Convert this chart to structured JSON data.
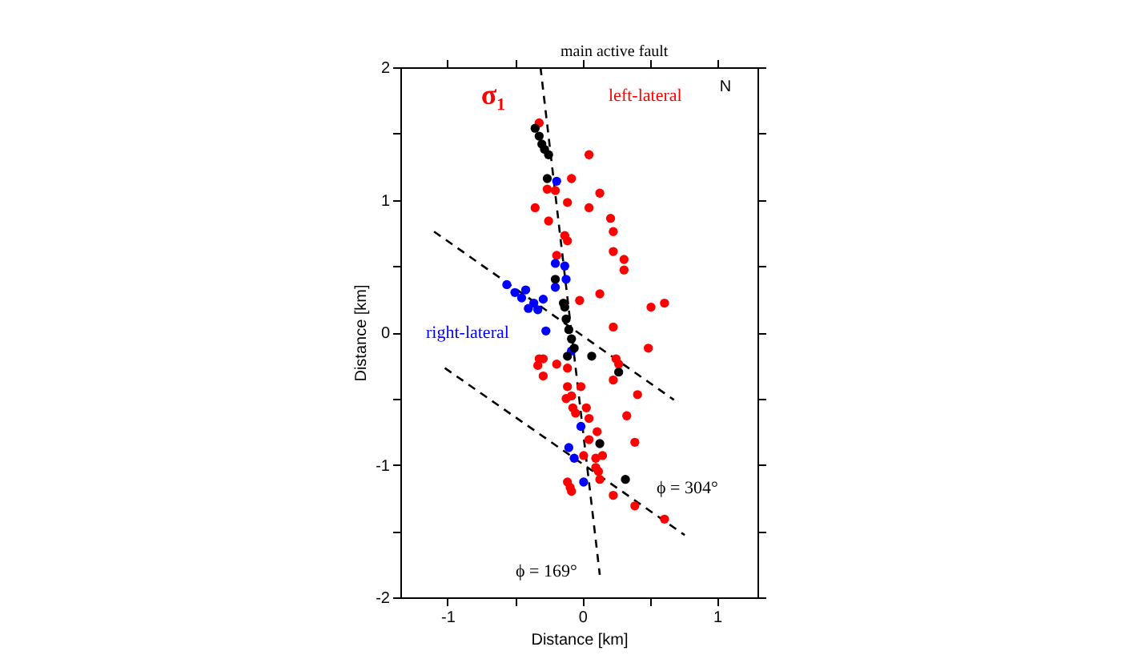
{
  "chart_data": {
    "type": "scatter",
    "xlabel": "Distance [km]",
    "ylabel": "Distance [km]",
    "xlim": [
      -1.35,
      1.3
    ],
    "ylim": [
      -2,
      2
    ],
    "xticks": [
      -1,
      {
        "value": -0.5,
        "label": null
      },
      0,
      {
        "value": 0.5,
        "label": null
      },
      1
    ],
    "yticks": [
      -2,
      {
        "value": -1.5,
        "label": null
      },
      -1,
      {
        "value": -0.5,
        "label": null
      },
      0,
      {
        "value": 0.5,
        "label": null
      },
      1,
      {
        "value": 1.5,
        "label": null
      },
      2
    ],
    "grid": false,
    "marker": "circle",
    "annotations": [
      "main active fault",
      "left-lateral",
      "N",
      "σ₁",
      "right-lateral",
      "ϕ = 304°",
      "ϕ = 169°"
    ],
    "series": [
      {
        "type": "line",
        "marker": "none",
        "color": "#000000",
        "line_style": "dashed",
        "x": [
          -0.31,
          0.13
        ],
        "values": [
          2,
          -1.83
        ]
      },
      {
        "type": "line",
        "marker": "none",
        "color": "#000000",
        "line_style": "dashed",
        "x": [
          -1.1,
          0.68
        ],
        "values": [
          0.76,
          -0.51
        ]
      },
      {
        "type": "line",
        "marker": "none",
        "color": "#000000",
        "line_style": "dashed",
        "x": [
          -1.02,
          0.76
        ],
        "values": [
          -0.27,
          -1.53
        ]
      },
      {
        "color": "#ff0000",
        "x": [
          -0.32,
          0.05,
          -0.08,
          -0.26,
          -0.2,
          0.13,
          -0.35,
          -0.11,
          0.05,
          -0.25,
          0.21,
          0.23,
          -0.13,
          -0.11,
          -0.19,
          0.23,
          0.31,
          0.31,
          0.13,
          -0.02,
          0.51,
          0.61,
          0.23,
          0.49,
          -0.32,
          -0.29,
          -0.33,
          -0.29,
          -0.19,
          -0.11,
          0.25,
          0.27,
          0.23,
          -0.11,
          -0.01,
          -0.08,
          -0.12,
          0.41,
          -0.07,
          0.03,
          -0.05,
          0.05,
          0.33,
          0.11,
          0.39,
          0.05,
          0.01,
          0.1,
          0.15,
          0.1,
          0.12,
          -0.11,
          -0.09,
          -0.08,
          0.13,
          0.23,
          0.39,
          0.61
        ],
        "values": [
          1.58,
          1.34,
          1.16,
          1.08,
          1.07,
          1.05,
          0.94,
          0.98,
          0.94,
          0.84,
          0.86,
          0.76,
          0.73,
          0.69,
          0.58,
          0.61,
          0.55,
          0.47,
          0.29,
          0.24,
          0.19,
          0.22,
          0.04,
          -0.12,
          -0.2,
          -0.2,
          -0.25,
          -0.33,
          -0.24,
          -0.27,
          -0.2,
          -0.24,
          -0.36,
          -0.41,
          -0.41,
          -0.48,
          -0.5,
          -0.47,
          -0.57,
          -0.57,
          -0.61,
          -0.65,
          -0.63,
          -0.75,
          -0.83,
          -0.81,
          -0.93,
          -0.95,
          -0.93,
          -1.02,
          -1.05,
          -1.13,
          -1.17,
          -1.2,
          -1.11,
          -1.23,
          -1.31,
          -1.41
        ]
      },
      {
        "color": "#0000ff",
        "x": [
          -0.19,
          -0.2,
          -0.13,
          -0.12,
          -0.2,
          -0.56,
          -0.5,
          -0.45,
          -0.4,
          -0.33,
          -0.29,
          -0.27,
          -0.08,
          -0.1,
          -0.06,
          -0.01,
          0.01,
          -0.42,
          -0.36
        ],
        "values": [
          1.14,
          0.52,
          0.5,
          0.4,
          0.34,
          0.36,
          0.3,
          0.26,
          0.18,
          0.17,
          0.25,
          0.01,
          -0.14,
          -0.87,
          -0.95,
          -0.71,
          -1.13,
          0.32,
          0.22
        ]
      },
      {
        "color": "#000000",
        "x": [
          -0.35,
          -0.32,
          -0.3,
          -0.28,
          -0.25,
          -0.26,
          -0.2,
          -0.13,
          -0.14,
          -0.12,
          -0.1,
          -0.08,
          -0.06,
          -0.11,
          0.07,
          0.27,
          0.13,
          0.32
        ],
        "values": [
          1.54,
          1.48,
          1.42,
          1.38,
          1.34,
          1.16,
          0.4,
          0.19,
          0.22,
          0.1,
          0.02,
          -0.05,
          -0.12,
          -0.18,
          -0.18,
          -0.3,
          -0.84,
          -1.11
        ]
      }
    ]
  }
}
